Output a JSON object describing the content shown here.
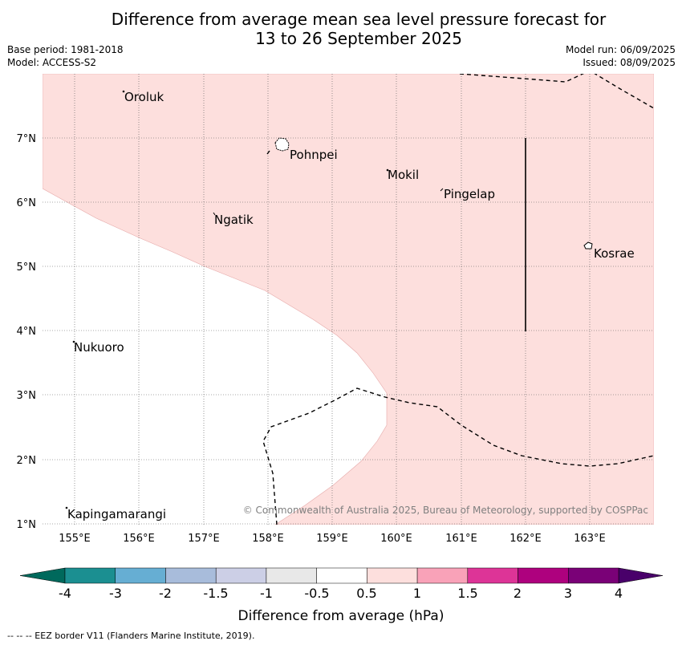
{
  "title": {
    "line1": "Difference from average mean sea level pressure forecast for",
    "line2": "13 to 26 September 2025"
  },
  "meta_left": {
    "base_period": "Base period: 1981-2018",
    "model": "Model: ACCESS-S2"
  },
  "meta_right": {
    "model_run": "Model run: 06/09/2025",
    "issued": "Issued: 08/09/2025"
  },
  "map": {
    "lon_ticks": [
      "155°E",
      "156°E",
      "157°E",
      "158°E",
      "159°E",
      "160°E",
      "161°E",
      "162°E",
      "163°E"
    ],
    "lat_ticks": [
      "7°N",
      "6°N",
      "5°N",
      "4°N",
      "3°N",
      "2°N",
      "1°N"
    ],
    "places": [
      "Oroluk",
      "Pohnpei",
      "Mokil",
      "Pingelap",
      "Ngatik",
      "Kosrae",
      "Nukuoro",
      "Kapingamarangi"
    ],
    "copyright": "© Commonwealth of Australia 2025, Bureau of Meteorology, supported by COSPPac",
    "shading_color": "#fddfdd",
    "shading_category": "0.5 to 1"
  },
  "colorbar": {
    "labels": [
      "-4",
      "-3",
      "-2",
      "-1.5",
      "-1",
      "-0.5",
      "0.5",
      "1",
      "1.5",
      "2",
      "3",
      "4"
    ],
    "colors": [
      "#1b8f91",
      "#66aed3",
      "#a8bcdb",
      "#cccfe6",
      "#e8e8e8",
      "#ffffff",
      "#fddfdd",
      "#f9a2b8",
      "#dd3497",
      "#ae017e",
      "#7a0177"
    ],
    "under_color": "#00695c",
    "over_color": "#49006a",
    "label": "Difference from average (hPa)"
  },
  "footnote": "--  --  -- EEZ border V11 (Flanders Marine Institute, 2019)."
}
